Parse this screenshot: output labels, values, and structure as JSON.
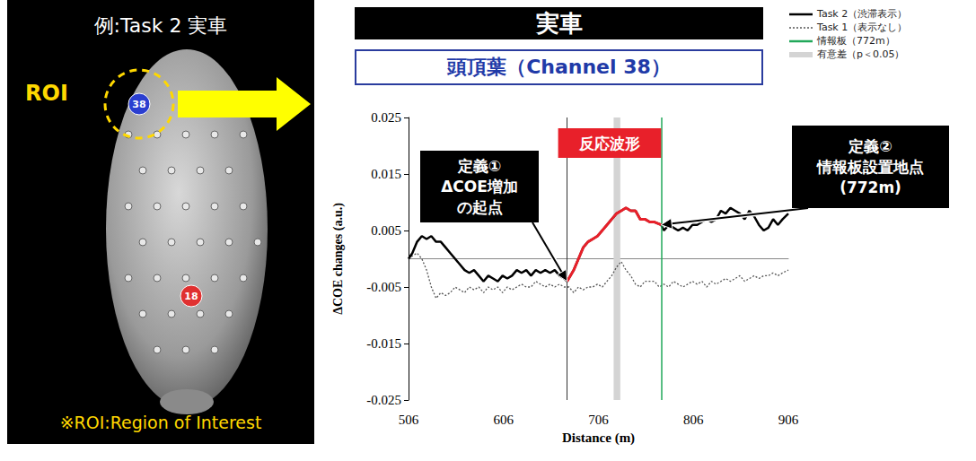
{
  "left_panel": {
    "title": "例:Task 2 実車",
    "roi_label": "ROI",
    "note": "※ROI:Region of Interest",
    "channels": [
      {
        "label": "38",
        "color": "#2b3fd0"
      },
      {
        "label": "18",
        "color": "#e03030"
      }
    ]
  },
  "chart_data": {
    "type": "line",
    "header": "実車",
    "title": "頭頂葉（Channel 38）",
    "xlabel": "Distance (m)",
    "ylabel": "ΔCOE changes (a.u.)",
    "xlim": [
      506,
      906
    ],
    "xticks": [
      506,
      606,
      706,
      806,
      906
    ],
    "ylim": [
      -0.025,
      0.025
    ],
    "yticks": [
      -0.025,
      -0.015,
      -0.005,
      0.005,
      0.015,
      0.025
    ],
    "legend": "upper right",
    "series": [
      {
        "name": "Task 2（渋滞表示）",
        "color": "#000000",
        "line_style": "solid",
        "x": [
          506,
          510,
          515,
          520,
          525,
          530,
          535,
          540,
          545,
          550,
          555,
          560,
          565,
          570,
          575,
          580,
          585,
          590,
          595,
          600,
          605,
          610,
          615,
          620,
          625,
          630,
          635,
          640,
          645,
          650,
          655,
          660,
          665,
          670,
          673,
          680,
          685,
          690,
          695,
          700,
          705,
          710,
          715,
          720,
          725,
          730,
          735,
          740,
          745,
          750,
          755,
          760,
          765,
          772,
          775,
          780,
          785,
          790,
          795,
          800,
          805,
          810,
          815,
          820,
          825,
          830,
          835,
          840,
          845,
          850,
          855,
          860,
          865,
          870,
          875,
          880,
          885,
          890,
          895,
          900,
          906
        ],
        "values": [
          0,
          0.001,
          0.003,
          0.004,
          0.0035,
          0.004,
          0.003,
          0.003,
          0.002,
          0.001,
          0,
          -0.001,
          -0.002,
          -0.0025,
          -0.002,
          -0.003,
          -0.004,
          -0.003,
          -0.0035,
          -0.004,
          -0.003,
          -0.0035,
          -0.003,
          -0.002,
          -0.0025,
          -0.002,
          -0.003,
          -0.002,
          -0.0025,
          -0.002,
          -0.0025,
          -0.002,
          -0.003,
          -0.0035,
          -0.004,
          -0.002,
          0,
          0.002,
          0.003,
          0.0035,
          0.004,
          0.005,
          0.006,
          0.007,
          0.008,
          0.0085,
          0.009,
          0.0085,
          0.0085,
          0.007,
          0.007,
          0.0065,
          0.0065,
          0.006,
          0.005,
          0.006,
          0.0055,
          0.005,
          0.0055,
          0.005,
          0.006,
          0.006,
          0.0065,
          0.007,
          0.0065,
          0.007,
          0.0085,
          0.008,
          0.009,
          0.0085,
          0.008,
          0.007,
          0.0085,
          0.0075,
          0.006,
          0.005,
          0.0055,
          0.007,
          0.006,
          0.007,
          0.008
        ]
      },
      {
        "name": "Task 1（表示なし）",
        "color": "#555555",
        "line_style": "dotted",
        "x": [
          506,
          510,
          515,
          520,
          525,
          530,
          535,
          540,
          545,
          550,
          555,
          560,
          565,
          570,
          575,
          580,
          585,
          590,
          595,
          600,
          605,
          610,
          615,
          620,
          625,
          630,
          635,
          640,
          645,
          650,
          655,
          660,
          665,
          670,
          675,
          680,
          685,
          690,
          695,
          700,
          705,
          710,
          715,
          720,
          725,
          730,
          735,
          740,
          745,
          750,
          755,
          760,
          765,
          770,
          775,
          780,
          785,
          790,
          795,
          800,
          805,
          810,
          815,
          820,
          825,
          830,
          835,
          840,
          845,
          850,
          855,
          860,
          865,
          870,
          875,
          880,
          885,
          890,
          895,
          900,
          906
        ],
        "values": [
          0,
          0.0005,
          0.001,
          0,
          -0.002,
          -0.005,
          -0.007,
          -0.006,
          -0.0065,
          -0.006,
          -0.005,
          -0.0055,
          -0.006,
          -0.005,
          -0.0055,
          -0.005,
          -0.006,
          -0.005,
          -0.0055,
          -0.005,
          -0.006,
          -0.005,
          -0.0055,
          -0.005,
          -0.0045,
          -0.005,
          -0.005,
          -0.004,
          -0.0045,
          -0.005,
          -0.0045,
          -0.005,
          -0.0045,
          -0.005,
          -0.005,
          -0.006,
          -0.005,
          -0.0055,
          -0.005,
          -0.005,
          -0.0045,
          -0.005,
          -0.004,
          -0.003,
          -0.0015,
          -0.0005,
          -0.002,
          -0.003,
          -0.0045,
          -0.005,
          -0.004,
          -0.004,
          -0.004,
          -0.005,
          -0.0045,
          -0.005,
          -0.004,
          -0.0045,
          -0.005,
          -0.0045,
          -0.004,
          -0.0045,
          -0.004,
          -0.005,
          -0.004,
          -0.0045,
          -0.004,
          -0.0035,
          -0.004,
          -0.0035,
          -0.003,
          -0.004,
          -0.0035,
          -0.003,
          -0.0035,
          -0.003,
          -0.003,
          -0.0025,
          -0.003,
          -0.0025,
          -0.002
        ]
      }
    ],
    "markers": [
      {
        "name": "情報板（772m）",
        "x": 772,
        "color": "#22a85a"
      }
    ],
    "significance": {
      "name": "有意差（p＜0.05）",
      "ranges": [
        [
          722,
          729
        ]
      ],
      "color": "#d4d4d4"
    },
    "annotations": [
      {
        "text": [
          "定義①",
          "ΔCOE増加",
          "の起点"
        ],
        "x": 673,
        "y": -0.004,
        "color": "#000000"
      },
      {
        "text": [
          "反応波形"
        ],
        "range": [
          673,
          772
        ],
        "color": "#e8202a"
      },
      {
        "text": [
          "定義②",
          "情報板設置地点",
          "(772m)"
        ],
        "x": 772,
        "y": 0.006,
        "color": "#000000"
      }
    ]
  }
}
